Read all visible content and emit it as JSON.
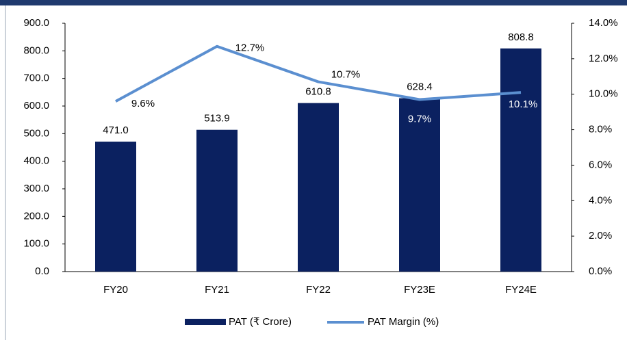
{
  "chart_data": {
    "type": "bar",
    "categories": [
      "FY20",
      "FY21",
      "FY22",
      "FY23E",
      "FY24E"
    ],
    "series": [
      {
        "name": "PAT (₹ Crore)",
        "color": "#0b2160",
        "type": "bar",
        "values": [
          471.0,
          513.9,
          610.8,
          628.4,
          808.8
        ],
        "value_labels": [
          "471.0",
          "513.9",
          "610.8",
          "628.4",
          "808.8"
        ]
      },
      {
        "name": "PAT Margin (%)",
        "color": "#5b8fd0",
        "type": "line",
        "axis": "y2",
        "values": [
          9.6,
          12.7,
          10.7,
          9.7,
          10.1
        ],
        "value_labels": [
          "9.6%",
          "12.7%",
          "10.7%",
          "9.7%",
          "10.1%"
        ]
      }
    ],
    "ylim": [
      0,
      900
    ],
    "yticks": [
      {
        "value": 0,
        "label": "0.0"
      },
      {
        "value": 100,
        "label": "100.0"
      },
      {
        "value": 200,
        "label": "200.0"
      },
      {
        "value": 300,
        "label": "300.0"
      },
      {
        "value": 400,
        "label": "400.0"
      },
      {
        "value": 500,
        "label": "500.0"
      },
      {
        "value": 600,
        "label": "600.0"
      },
      {
        "value": 700,
        "label": "700.0"
      },
      {
        "value": 800,
        "label": "800.0"
      },
      {
        "value": 900,
        "label": "900.0"
      }
    ],
    "y2lim": [
      0,
      14
    ],
    "y2ticks": [
      {
        "value": 0,
        "label": "0.0%"
      },
      {
        "value": 2,
        "label": "2.0%"
      },
      {
        "value": 4,
        "label": "4.0%"
      },
      {
        "value": 6,
        "label": "6.0%"
      },
      {
        "value": 8,
        "label": "8.0%"
      },
      {
        "value": 10,
        "label": "10.0%"
      },
      {
        "value": 12,
        "label": "12.0%"
      },
      {
        "value": 14,
        "label": "14.0%"
      }
    ],
    "legend": "bottom",
    "grid": false
  }
}
